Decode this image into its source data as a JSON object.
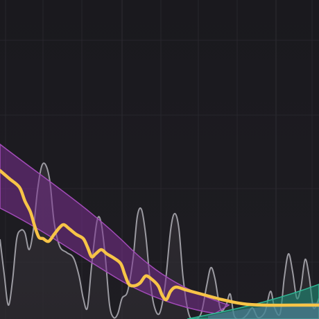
{
  "eq_analyzer": {
    "colors": {
      "background_top": "#1a191e",
      "background_bottom": "#1e1d22",
      "grid": "#2b2a30",
      "spectrum_line": "#9c9ba2",
      "spectrum_fill": "#302d33",
      "eq_curve": "#f7c447",
      "low_band_fill": "#7a2f8f",
      "low_band_edge": "#a24bb8",
      "high_band_fill": "#1f8f78",
      "high_band_edge": "#2fb895",
      "band_overlap": "#5a7fa0"
    },
    "bands": [
      {
        "name_id": "low-band",
        "shape": "low-shelf"
      },
      {
        "name_id": "high-band",
        "shape": "high-shelf"
      }
    ],
    "controls": []
  }
}
